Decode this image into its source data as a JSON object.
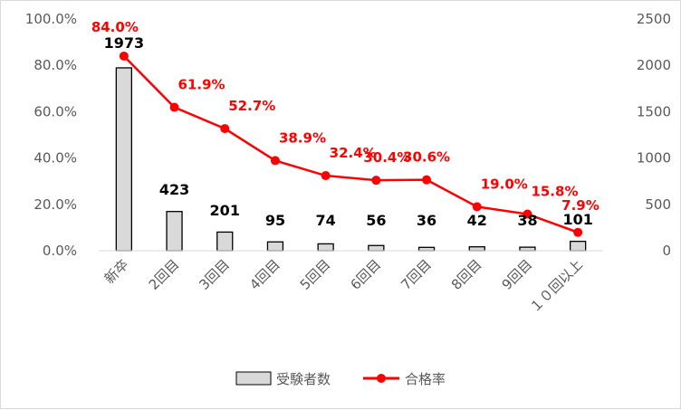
{
  "chart_data": {
    "type": "bar+line",
    "categories": [
      "新卒",
      "2回目",
      "3回目",
      "4回目",
      "5回目",
      "6回目",
      "7回目",
      "8回目",
      "9回目",
      "１０回以上"
    ],
    "series": [
      {
        "name": "受験者数",
        "type": "bar",
        "axis": "right",
        "values": [
          1973,
          423,
          201,
          95,
          74,
          56,
          36,
          42,
          38,
          101
        ]
      },
      {
        "name": "合格率",
        "type": "line",
        "axis": "left",
        "values": [
          84.0,
          61.9,
          52.7,
          38.9,
          32.4,
          30.4,
          30.6,
          19.0,
          15.8,
          7.9
        ]
      }
    ],
    "left_axis": {
      "min": 0,
      "max": 100,
      "step": 20,
      "tick_labels": [
        "0.0%",
        "20.0%",
        "40.0%",
        "60.0%",
        "80.0%",
        "100.0%"
      ]
    },
    "right_axis": {
      "min": 0,
      "max": 2500,
      "step": 500,
      "tick_labels": [
        "0",
        "500",
        "1000",
        "1500",
        "2000",
        "2500"
      ]
    },
    "count_labels": [
      "1973",
      "423",
      "201",
      "95",
      "74",
      "56",
      "36",
      "42",
      "38",
      "101"
    ],
    "rate_labels": [
      "84.0%",
      "61.9%",
      "52.7%",
      "38.9%",
      "32.4%",
      "30.4%",
      "30.6%",
      "19.0%",
      "15.8%",
      "7.9%"
    ],
    "grid": false,
    "legend": {
      "position": "bottom",
      "entries": [
        "受験者数",
        "合格率"
      ]
    },
    "colors": {
      "bar_fill": "#d9d9d9",
      "bar_stroke": "#000000",
      "line": "#ff0000",
      "rate_label": "#ff0000",
      "count_label": "#000000",
      "axis_text": "#595959"
    }
  }
}
